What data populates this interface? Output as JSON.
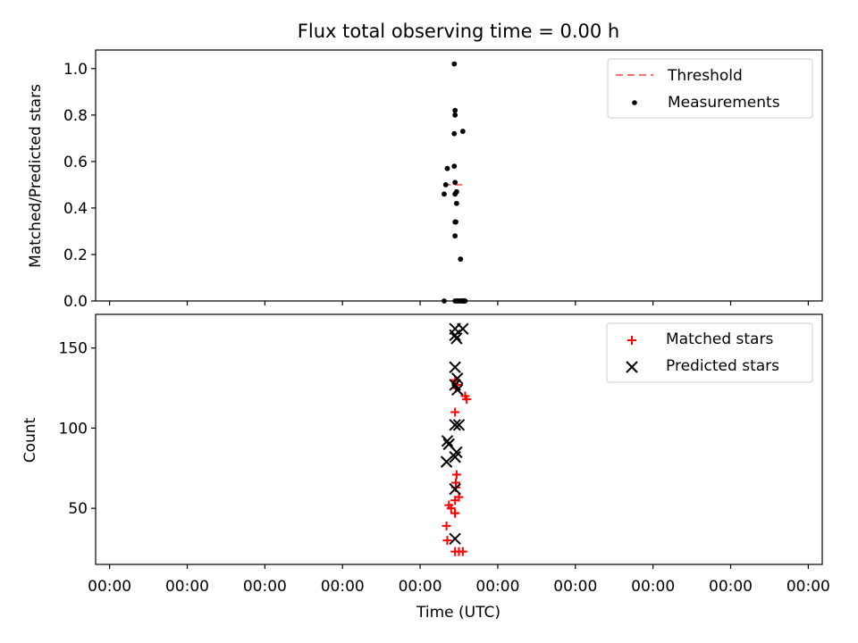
{
  "figure": {
    "title": "Flux total observing time = 0.00 h"
  },
  "chart_data": [
    {
      "type": "scatter",
      "panel": "top",
      "ylabel": "Matched/Predicted stars",
      "xlabel": "",
      "ylim": [
        0.0,
        1.08
      ],
      "yticks": [
        "0.0",
        "0.2",
        "0.4",
        "0.6",
        "0.8",
        "1.0"
      ],
      "x_tick_labels": [
        "00:00",
        "00:00",
        "00:00",
        "00:00",
        "00:00",
        "00:00",
        "00:00",
        "00:00",
        "00:00",
        "00:00"
      ],
      "xlim": [
        -0.18,
        9.18
      ],
      "grid": false,
      "legend_position": "top-right",
      "legend": [
        "Threshold",
        "Measurements"
      ],
      "threshold": {
        "name": "Threshold",
        "value": 0.5,
        "x_range": [
          4.3,
          4.6
        ],
        "color": "#ff7070",
        "style": "dashed"
      },
      "series": [
        {
          "name": "Measurements",
          "color": "#000000",
          "marker": "dot",
          "x": [
            4.44,
            4.45,
            4.45,
            4.44,
            4.55,
            4.44,
            4.35,
            4.45,
            4.33,
            4.47,
            4.31,
            4.45,
            4.47,
            4.46,
            4.45,
            4.45,
            4.52,
            4.31,
            4.45,
            4.47,
            4.48,
            4.5,
            4.52,
            4.53,
            4.54,
            4.55,
            4.56,
            4.57,
            4.58
          ],
          "y": [
            1.02,
            0.82,
            0.8,
            0.72,
            0.73,
            0.58,
            0.57,
            0.51,
            0.5,
            0.47,
            0.46,
            0.46,
            0.42,
            0.34,
            0.34,
            0.28,
            0.18,
            0.0,
            0.0,
            0.0,
            0.0,
            0.0,
            0.0,
            0.0,
            0.0,
            0.0,
            0.0,
            0.0,
            0.0
          ]
        }
      ]
    },
    {
      "type": "scatter",
      "panel": "bottom",
      "xlabel": "Time (UTC)",
      "ylabel": "Count",
      "ylim": [
        15,
        171
      ],
      "yticks": [
        "50",
        "100",
        "150"
      ],
      "x_tick_labels": [
        "00:00",
        "00:00",
        "00:00",
        "00:00",
        "00:00",
        "00:00",
        "00:00",
        "00:00",
        "00:00",
        "00:00"
      ],
      "xlim": [
        -0.18,
        9.18
      ],
      "grid": false,
      "legend_position": "top-right",
      "legend": [
        "Matched stars",
        "Predicted stars"
      ],
      "series": [
        {
          "name": "Matched stars",
          "color": "#ff0000",
          "marker": "plus",
          "x": [
            4.45,
            4.48,
            4.46,
            4.58,
            4.6,
            4.45,
            4.47,
            4.46,
            4.46,
            4.5,
            4.45,
            4.37,
            4.4,
            4.45,
            4.45,
            4.34,
            4.35,
            4.45,
            4.5,
            4.55
          ],
          "y": [
            130,
            127,
            125,
            120,
            118,
            110,
            71,
            66,
            63,
            57,
            55,
            52,
            50,
            47,
            47,
            39,
            30,
            23,
            23,
            23
          ]
        },
        {
          "name": "Predicted stars",
          "color": "#000000",
          "marker": "x",
          "x": [
            4.45,
            4.55,
            4.45,
            4.47,
            4.45,
            4.48,
            4.45,
            4.48,
            4.5,
            4.45,
            4.35,
            4.37,
            4.47,
            4.45,
            4.34,
            4.45,
            4.45
          ],
          "y": [
            162,
            162,
            158,
            156,
            138,
            131,
            127,
            124,
            102,
            102,
            92,
            90,
            85,
            82,
            79,
            62,
            31
          ]
        }
      ]
    }
  ]
}
